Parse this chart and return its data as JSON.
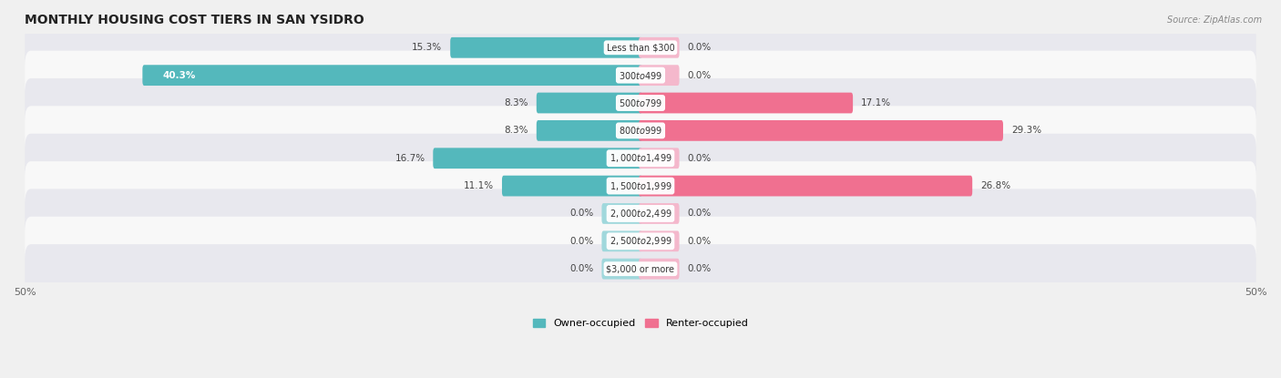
{
  "title": "MONTHLY HOUSING COST TIERS IN SAN YSIDRO",
  "source": "Source: ZipAtlas.com",
  "categories": [
    "Less than $300",
    "$300 to $499",
    "$500 to $799",
    "$800 to $999",
    "$1,000 to $1,499",
    "$1,500 to $1,999",
    "$2,000 to $2,499",
    "$2,500 to $2,999",
    "$3,000 or more"
  ],
  "owner_values": [
    15.3,
    40.3,
    8.3,
    8.3,
    16.7,
    11.1,
    0.0,
    0.0,
    0.0
  ],
  "renter_values": [
    0.0,
    0.0,
    17.1,
    29.3,
    0.0,
    26.8,
    0.0,
    0.0,
    0.0
  ],
  "owner_color": "#54b8bc",
  "renter_color": "#f07090",
  "owner_color_light": "#a0d8dc",
  "renter_color_light": "#f4b8cc",
  "axis_limit": 50.0,
  "stub_size": 3.0,
  "bg_color": "#f0f0f0",
  "row_light": "#f8f8f8",
  "row_dark": "#e8e8ee",
  "title_fontsize": 10,
  "label_fontsize": 7,
  "value_fontsize": 7.5,
  "tick_fontsize": 8,
  "legend_fontsize": 8
}
